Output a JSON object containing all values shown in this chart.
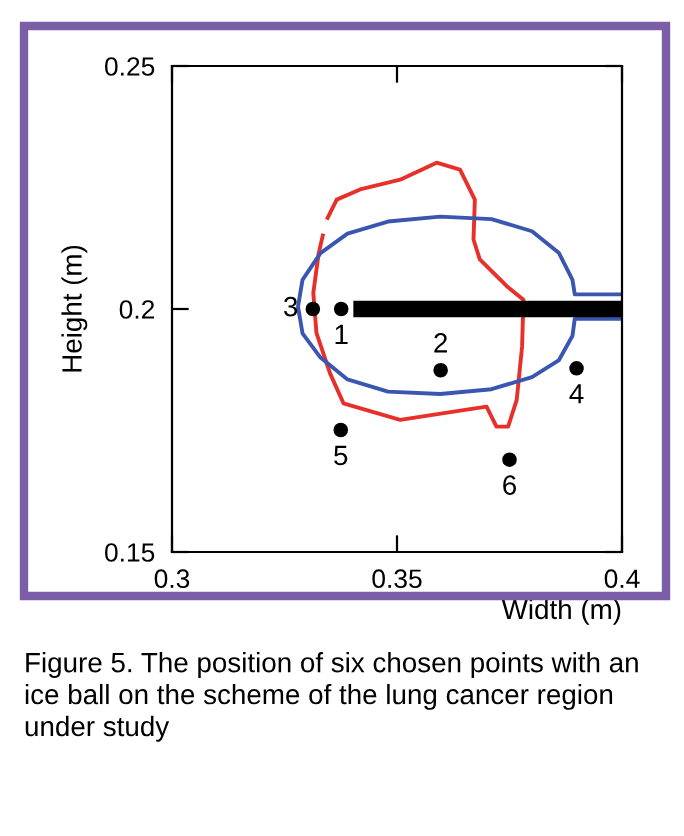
{
  "chart_data": {
    "type": "scatter",
    "xlabel": "Width (m)",
    "ylabel": "Height (m)",
    "xlim": [
      0.3,
      0.4
    ],
    "xticks": [
      0.3,
      0.35,
      0.4
    ],
    "ylim": [
      0.15,
      0.25
    ],
    "yticks": [
      0.15,
      0.2,
      0.25
    ],
    "grid": false,
    "legend": false,
    "series": [
      {
        "type": "line",
        "color": "#e8302a",
        "x": [
          0.3344,
          0.3366,
          0.3418,
          0.3507,
          0.3588,
          0.364,
          0.3673,
          0.367,
          0.3684,
          0.3744,
          0.3781,
          0.3778,
          0.3766,
          0.3747,
          0.3721,
          0.3699,
          0.3655,
          0.3507,
          0.3381,
          0.3351,
          0.3321,
          0.3314,
          0.3326,
          0.3336
        ],
        "values": [
          0.2184,
          0.2225,
          0.2246,
          0.2266,
          0.2301,
          0.2287,
          0.2225,
          0.2143,
          0.2102,
          0.2047,
          0.2019,
          0.1923,
          0.1813,
          0.1758,
          0.1758,
          0.1799,
          0.1793,
          0.1772,
          0.1806,
          0.1868,
          0.1951,
          0.2033,
          0.2115,
          0.2155
        ]
      },
      {
        "type": "line",
        "color": "#3a56b0",
        "x": [
          0.4,
          0.3895,
          0.389,
          0.386,
          0.38,
          0.371,
          0.3596,
          0.348,
          0.339,
          0.333,
          0.329,
          0.328,
          0.329,
          0.333,
          0.339,
          0.348,
          0.3596,
          0.371,
          0.38,
          0.386,
          0.389,
          0.3895,
          0.4
        ],
        "values": [
          0.203,
          0.203,
          0.206,
          0.2115,
          0.216,
          0.2185,
          0.219,
          0.218,
          0.2155,
          0.2115,
          0.206,
          0.2005,
          0.195,
          0.19,
          0.1855,
          0.183,
          0.1825,
          0.1835,
          0.186,
          0.1895,
          0.1945,
          0.198,
          0.198
        ]
      },
      {
        "type": "line",
        "color": "#000000",
        "x": [
          0.3403,
          0.4
        ],
        "values": [
          0.2,
          0.2
        ]
      },
      {
        "color": "#000000",
        "marker": "circle",
        "x": [
          0.3376,
          0.3597,
          0.3313,
          0.3899,
          0.3375,
          0.375
        ],
        "values": [
          0.2,
          0.1874,
          0.2,
          0.1878,
          0.1751,
          0.169
        ]
      }
    ],
    "annotations": [
      {
        "text": "1",
        "x": 0.3376,
        "y": 0.2
      },
      {
        "text": "2",
        "x": 0.3597,
        "y": 0.1874
      },
      {
        "text": "3",
        "x": 0.3313,
        "y": 0.2
      },
      {
        "text": "4",
        "x": 0.3899,
        "y": 0.1878
      },
      {
        "text": "5",
        "x": 0.3375,
        "y": 0.1751
      },
      {
        "text": "6",
        "x": 0.375,
        "y": 0.169
      },
      "Figure 5. The position of six chosen points with an ice ball on the scheme of the lung cancer region under study"
    ]
  }
}
